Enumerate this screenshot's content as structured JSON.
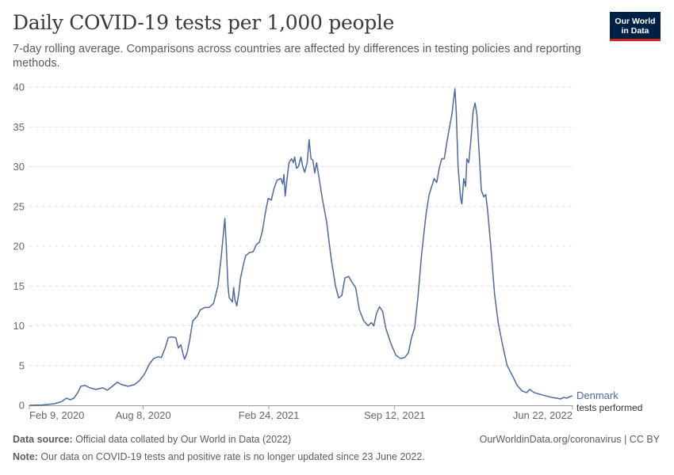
{
  "header": {
    "title": "Daily COVID-19 tests per 1,000 people",
    "subtitle": "7-day rolling average. Comparisons across countries are affected by differences in testing policies and reporting methods."
  },
  "logo": {
    "line1": "Our World",
    "line2": "in Data"
  },
  "footer": {
    "source_label": "Data source:",
    "source_text": " Official data collated by Our World in Data (2022)",
    "url": "OurWorldinData.org/coronavirus | CC BY",
    "note_label": "Note:",
    "note_text": " Our data on COVID-19 tests and positive rate is no longer updated since 23 June 2022."
  },
  "colors": {
    "line": "#4c6a9c",
    "grid": "#dddddd",
    "axis": "#999999",
    "text": "#666666"
  },
  "chart_data": {
    "type": "line",
    "title": "Daily COVID-19 tests per 1,000 people",
    "xlabel": "",
    "ylabel": "",
    "ylim": [
      0,
      40
    ],
    "yticks": [
      0,
      5,
      10,
      15,
      20,
      25,
      30,
      35,
      40
    ],
    "grid": "horizontal dashed",
    "x_tick_labels": [
      "Feb 9, 2020",
      "Aug 8, 2020",
      "Feb 24, 2021",
      "Sep 12, 2021",
      "Jun 22, 2022"
    ],
    "x_tick_dates": [
      "2020-02-09",
      "2020-08-08",
      "2021-02-24",
      "2021-09-12",
      "2022-06-22"
    ],
    "series": [
      {
        "name": "Denmark",
        "label_secondary": "tests performed",
        "points": [
          [
            "2020-02-09",
            0.0
          ],
          [
            "2020-03-01",
            0.05
          ],
          [
            "2020-03-20",
            0.2
          ],
          [
            "2020-04-01",
            0.5
          ],
          [
            "2020-04-08",
            0.9
          ],
          [
            "2020-04-14",
            0.7
          ],
          [
            "2020-04-20",
            0.9
          ],
          [
            "2020-04-26",
            1.6
          ],
          [
            "2020-05-01",
            2.4
          ],
          [
            "2020-05-08",
            2.5
          ],
          [
            "2020-05-15",
            2.2
          ],
          [
            "2020-05-25",
            2.0
          ],
          [
            "2020-06-05",
            2.2
          ],
          [
            "2020-06-12",
            1.9
          ],
          [
            "2020-06-20",
            2.4
          ],
          [
            "2020-06-28",
            2.9
          ],
          [
            "2020-07-05",
            2.6
          ],
          [
            "2020-07-15",
            2.4
          ],
          [
            "2020-07-25",
            2.6
          ],
          [
            "2020-08-02",
            3.1
          ],
          [
            "2020-08-10",
            3.9
          ],
          [
            "2020-08-18",
            5.2
          ],
          [
            "2020-08-25",
            5.9
          ],
          [
            "2020-09-01",
            6.1
          ],
          [
            "2020-09-06",
            6.0
          ],
          [
            "2020-09-12",
            7.2
          ],
          [
            "2020-09-17",
            8.5
          ],
          [
            "2020-09-22",
            8.6
          ],
          [
            "2020-09-29",
            8.5
          ],
          [
            "2020-10-03",
            7.2
          ],
          [
            "2020-10-07",
            7.6
          ],
          [
            "2020-10-11",
            6.3
          ],
          [
            "2020-10-13",
            5.8
          ],
          [
            "2020-10-17",
            6.6
          ],
          [
            "2020-10-21",
            8.2
          ],
          [
            "2020-10-26",
            10.6
          ],
          [
            "2020-11-02",
            11.2
          ],
          [
            "2020-11-07",
            12.0
          ],
          [
            "2020-11-14",
            12.3
          ],
          [
            "2020-11-21",
            12.3
          ],
          [
            "2020-11-28",
            12.8
          ],
          [
            "2020-12-05",
            15.0
          ],
          [
            "2020-12-10",
            18.5
          ],
          [
            "2020-12-14",
            21.8
          ],
          [
            "2020-12-16",
            23.5
          ],
          [
            "2020-12-18",
            20.5
          ],
          [
            "2020-12-21",
            15.0
          ],
          [
            "2020-12-23",
            13.5
          ],
          [
            "2020-12-25",
            13.3
          ],
          [
            "2020-12-28",
            13.0
          ],
          [
            "2020-12-30",
            14.8
          ],
          [
            "2021-01-01",
            13.3
          ],
          [
            "2021-01-04",
            12.5
          ],
          [
            "2021-01-07",
            14.0
          ],
          [
            "2021-01-10",
            16.0
          ],
          [
            "2021-01-14",
            17.5
          ],
          [
            "2021-01-18",
            18.8
          ],
          [
            "2021-01-24",
            19.2
          ],
          [
            "2021-01-30",
            19.3
          ],
          [
            "2021-02-04",
            20.2
          ],
          [
            "2021-02-09",
            20.5
          ],
          [
            "2021-02-14",
            22.0
          ],
          [
            "2021-02-18",
            24.0
          ],
          [
            "2021-02-23",
            26.0
          ],
          [
            "2021-02-28",
            25.8
          ],
          [
            "2021-03-04",
            27.2
          ],
          [
            "2021-03-09",
            28.3
          ],
          [
            "2021-03-15",
            28.5
          ],
          [
            "2021-03-18",
            27.8
          ],
          [
            "2021-03-20",
            29.0
          ],
          [
            "2021-03-22",
            26.3
          ],
          [
            "2021-03-25",
            28.5
          ],
          [
            "2021-03-28",
            30.5
          ],
          [
            "2021-04-01",
            31.0
          ],
          [
            "2021-04-04",
            30.5
          ],
          [
            "2021-04-06",
            31.2
          ],
          [
            "2021-04-09",
            29.8
          ],
          [
            "2021-04-12",
            30.0
          ],
          [
            "2021-04-16",
            31.2
          ],
          [
            "2021-04-19",
            30.0
          ],
          [
            "2021-04-22",
            29.3
          ],
          [
            "2021-04-26",
            30.5
          ],
          [
            "2021-04-29",
            33.4
          ],
          [
            "2021-05-02",
            31.0
          ],
          [
            "2021-05-05",
            30.8
          ],
          [
            "2021-05-08",
            29.2
          ],
          [
            "2021-05-11",
            30.5
          ],
          [
            "2021-05-15",
            28.5
          ],
          [
            "2021-05-20",
            26.0
          ],
          [
            "2021-05-27",
            23.0
          ],
          [
            "2021-06-03",
            18.5
          ],
          [
            "2021-06-10",
            15.0
          ],
          [
            "2021-06-15",
            13.5
          ],
          [
            "2021-06-20",
            13.8
          ],
          [
            "2021-06-25",
            16.0
          ],
          [
            "2021-07-01",
            16.2
          ],
          [
            "2021-07-06",
            15.5
          ],
          [
            "2021-07-12",
            14.8
          ],
          [
            "2021-07-18",
            12.0
          ],
          [
            "2021-07-25",
            10.6
          ],
          [
            "2021-08-01",
            10.0
          ],
          [
            "2021-08-06",
            10.4
          ],
          [
            "2021-08-10",
            10.0
          ],
          [
            "2021-08-14",
            11.5
          ],
          [
            "2021-08-19",
            12.4
          ],
          [
            "2021-08-24",
            11.8
          ],
          [
            "2021-08-29",
            9.7
          ],
          [
            "2021-09-06",
            7.8
          ],
          [
            "2021-09-14",
            6.3
          ],
          [
            "2021-09-21",
            5.9
          ],
          [
            "2021-09-28",
            6.0
          ],
          [
            "2021-10-04",
            6.6
          ],
          [
            "2021-10-09",
            8.5
          ],
          [
            "2021-10-14",
            9.8
          ],
          [
            "2021-10-19",
            13.5
          ],
          [
            "2021-10-25",
            19.0
          ],
          [
            "2021-11-01",
            24.0
          ],
          [
            "2021-11-06",
            26.5
          ],
          [
            "2021-11-10",
            27.5
          ],
          [
            "2021-11-14",
            28.5
          ],
          [
            "2021-11-18",
            28.0
          ],
          [
            "2021-11-22",
            29.8
          ],
          [
            "2021-11-26",
            31.0
          ],
          [
            "2021-11-30",
            31.0
          ],
          [
            "2021-12-04",
            33.0
          ],
          [
            "2021-12-08",
            34.8
          ],
          [
            "2021-12-12",
            36.5
          ],
          [
            "2021-12-15",
            38.5
          ],
          [
            "2021-12-17",
            39.8
          ],
          [
            "2021-12-19",
            37.0
          ],
          [
            "2021-12-22",
            30.0
          ],
          [
            "2021-12-26",
            26.0
          ],
          [
            "2021-12-28",
            25.3
          ],
          [
            "2021-12-31",
            28.5
          ],
          [
            "2022-01-03",
            27.5
          ],
          [
            "2022-01-05",
            31.0
          ],
          [
            "2022-01-08",
            30.5
          ],
          [
            "2022-01-11",
            33.0
          ],
          [
            "2022-01-15",
            37.0
          ],
          [
            "2022-01-18",
            38.0
          ],
          [
            "2022-01-21",
            36.5
          ],
          [
            "2022-01-25",
            31.0
          ],
          [
            "2022-01-28",
            27.0
          ],
          [
            "2022-02-01",
            26.2
          ],
          [
            "2022-02-04",
            26.5
          ],
          [
            "2022-02-07",
            24.5
          ],
          [
            "2022-02-12",
            20.0
          ],
          [
            "2022-02-18",
            14.0
          ],
          [
            "2022-02-24",
            10.3
          ],
          [
            "2022-03-03",
            7.5
          ],
          [
            "2022-03-10",
            5.0
          ],
          [
            "2022-03-18",
            3.8
          ],
          [
            "2022-03-26",
            2.5
          ],
          [
            "2022-04-03",
            1.8
          ],
          [
            "2022-04-10",
            1.6
          ],
          [
            "2022-04-15",
            2.0
          ],
          [
            "2022-04-22",
            1.6
          ],
          [
            "2022-05-01",
            1.4
          ],
          [
            "2022-05-10",
            1.2
          ],
          [
            "2022-05-20",
            1.0
          ],
          [
            "2022-05-28",
            0.9
          ],
          [
            "2022-06-03",
            0.8
          ],
          [
            "2022-06-08",
            1.0
          ],
          [
            "2022-06-13",
            0.9
          ],
          [
            "2022-06-18",
            1.1
          ],
          [
            "2022-06-22",
            1.2
          ]
        ]
      }
    ]
  }
}
